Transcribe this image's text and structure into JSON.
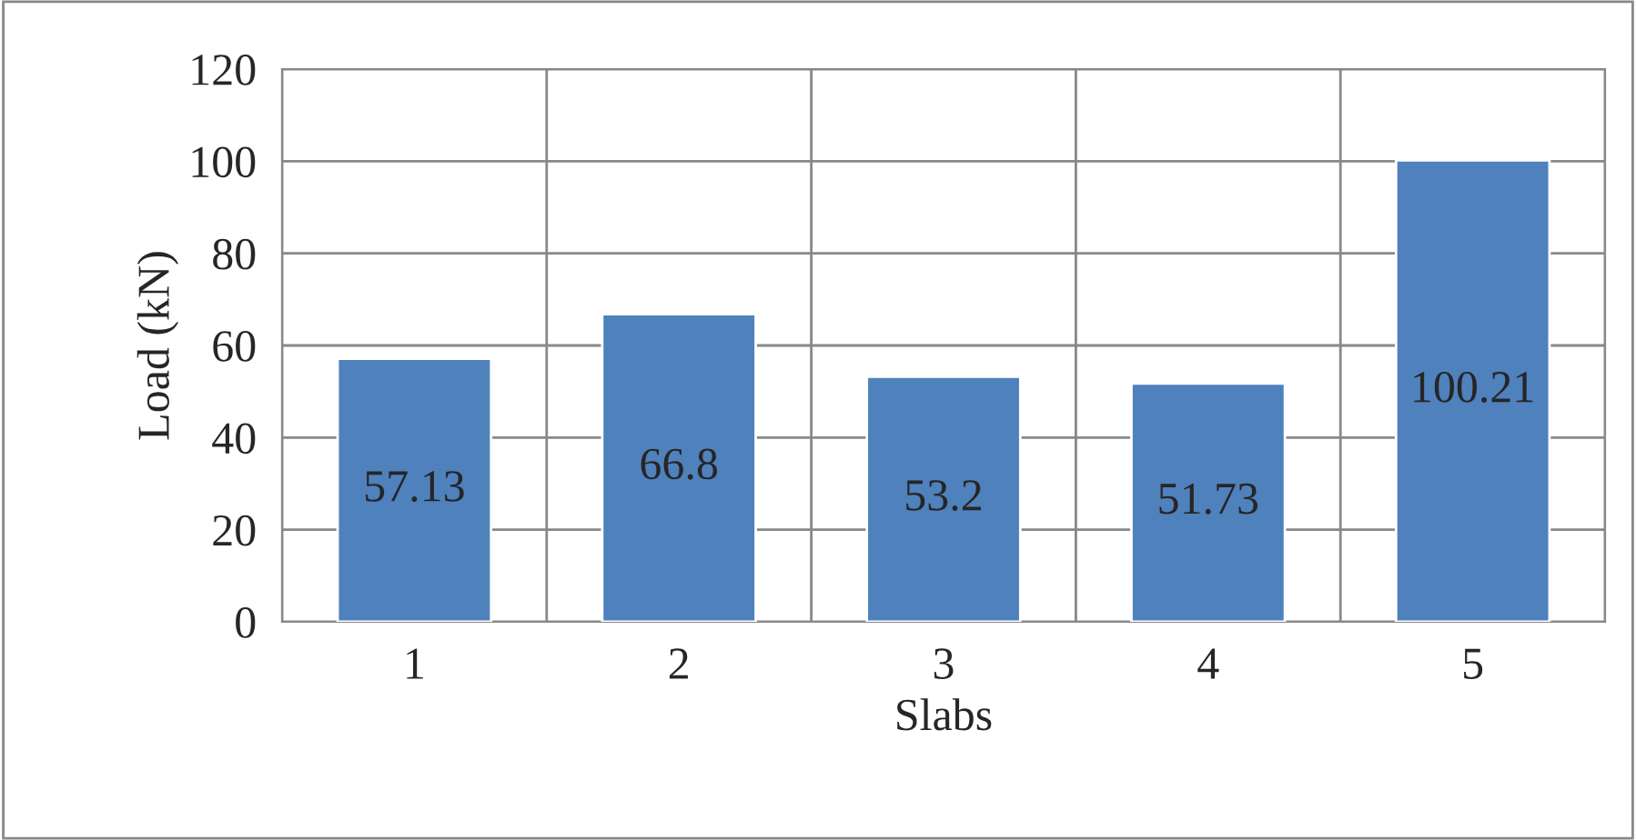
{
  "chart_data": {
    "type": "bar",
    "xlabel": "Slabs",
    "ylabel": "Load (kN)",
    "categories": [
      "1",
      "2",
      "3",
      "4",
      "5"
    ],
    "values": [
      57.13,
      66.8,
      53.2,
      51.73,
      100.21
    ],
    "color": "#4f81bd",
    "ylim": [
      0,
      120
    ],
    "yticks": [
      0,
      20,
      40,
      60,
      80,
      100,
      120
    ],
    "grid": true,
    "data_labels": true
  }
}
